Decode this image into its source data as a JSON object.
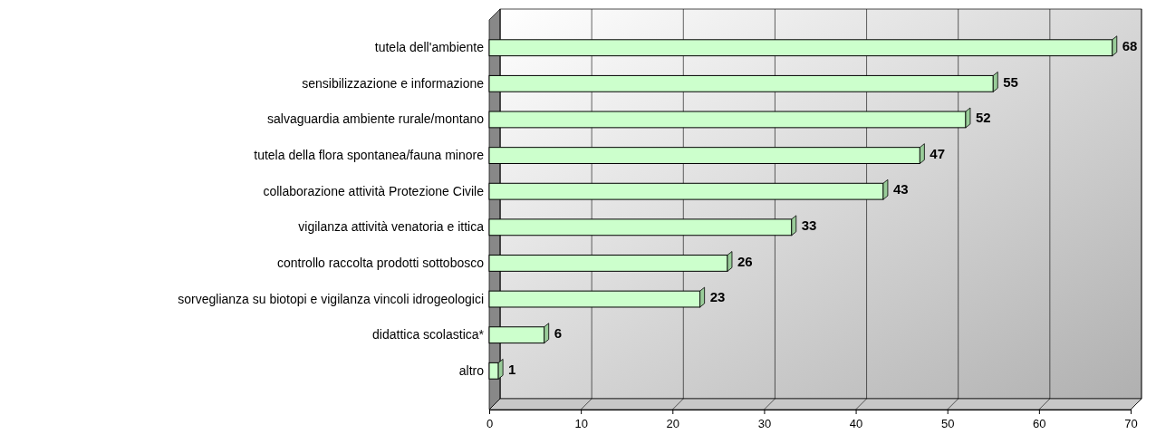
{
  "chart_data": {
    "type": "bar",
    "orientation": "horizontal",
    "categories": [
      "tutela dell'ambiente",
      "sensibilizzazione e informazione",
      "salvaguardia ambiente rurale/montano",
      "tutela della flora spontanea/fauna minore",
      "collaborazione attività Protezione Civile",
      "vigilanza attività venatoria e ittica",
      "controllo raccolta prodotti sottobosco",
      "sorveglianza su biotopi e vigilanza vincoli idrogeologici",
      "didattica scolastica*",
      "altro"
    ],
    "values": [
      68,
      55,
      52,
      47,
      43,
      33,
      26,
      23,
      6,
      1
    ],
    "color": "#ccffcc",
    "xlim": [
      0,
      70
    ],
    "xticks": [
      0,
      10,
      20,
      30,
      40,
      50,
      60,
      70
    ],
    "grid": "x",
    "data_labels": true
  }
}
